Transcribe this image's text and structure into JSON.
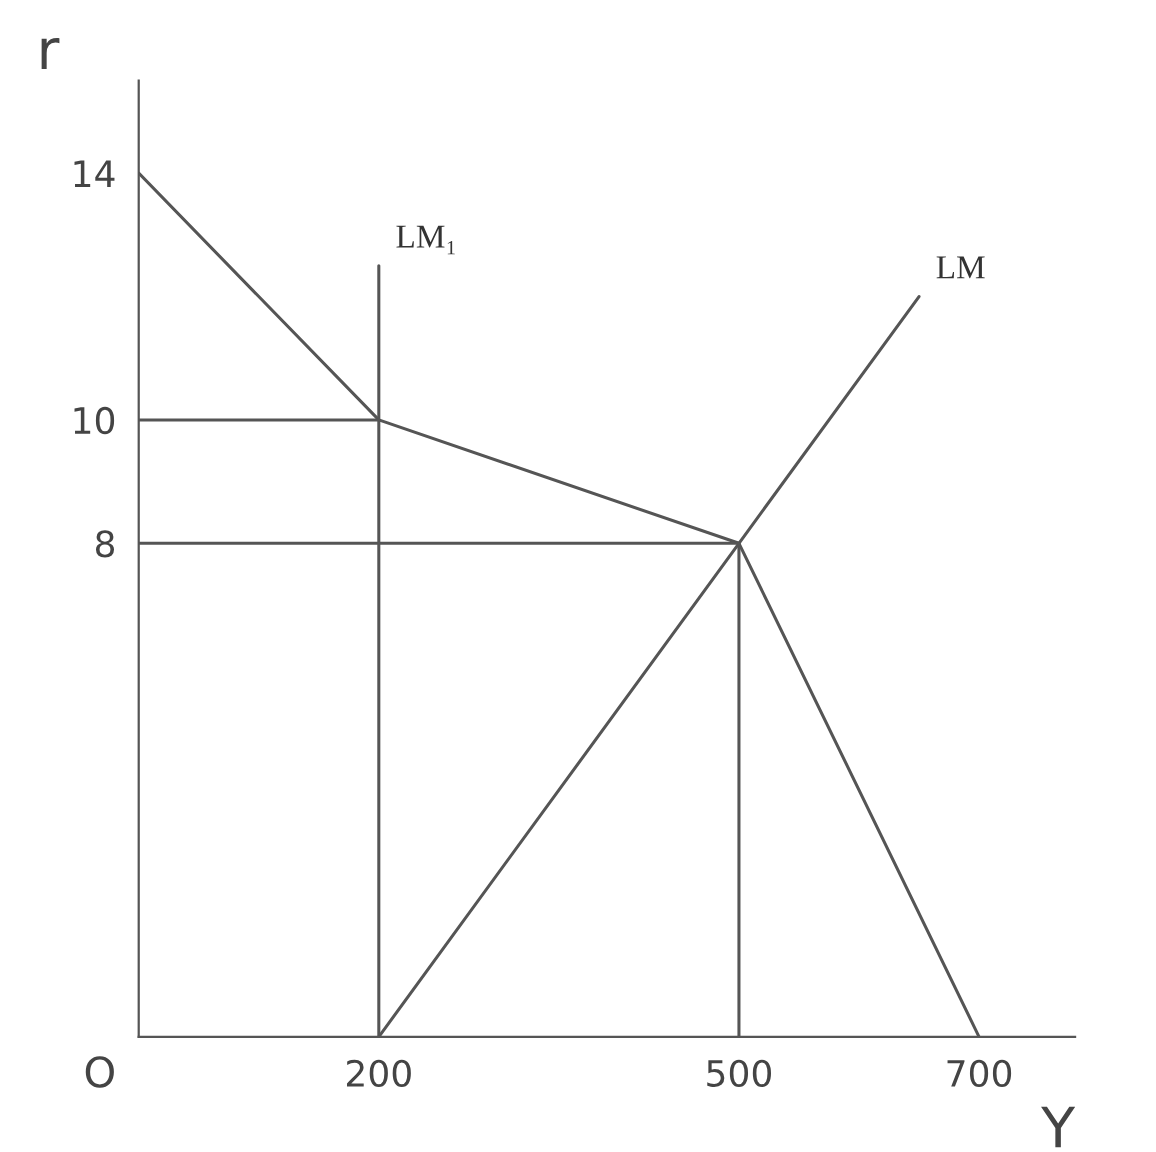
{
  "chart_data": {
    "type": "line",
    "xlabel": "Y",
    "ylabel": "r",
    "xlim": [
      0,
      780
    ],
    "ylim": [
      0,
      15.5
    ],
    "xticks": [
      200,
      500,
      700
    ],
    "yticks": [
      8,
      10,
      14
    ],
    "grid": false,
    "marker": "none",
    "line_style": "solid",
    "annotations": [
      "O"
    ],
    "series": [
      {
        "color": "#555555",
        "x": [
          0,
          200,
          500,
          700
        ],
        "values": [
          14,
          10,
          8,
          0
        ]
      },
      {
        "name": "LM",
        "color": "#555555",
        "x": [
          200,
          500,
          650
        ],
        "values": [
          0,
          8,
          12
        ]
      },
      {
        "name": "LM₁",
        "color": "#555555",
        "x": [
          200,
          200
        ],
        "values": [
          0,
          12.5
        ]
      },
      {
        "color": "#555555",
        "x": [
          0,
          200
        ],
        "values": [
          10,
          10
        ]
      },
      {
        "color": "#555555",
        "x": [
          0,
          500,
          500
        ],
        "values": [
          8,
          8,
          0
        ]
      }
    ]
  }
}
